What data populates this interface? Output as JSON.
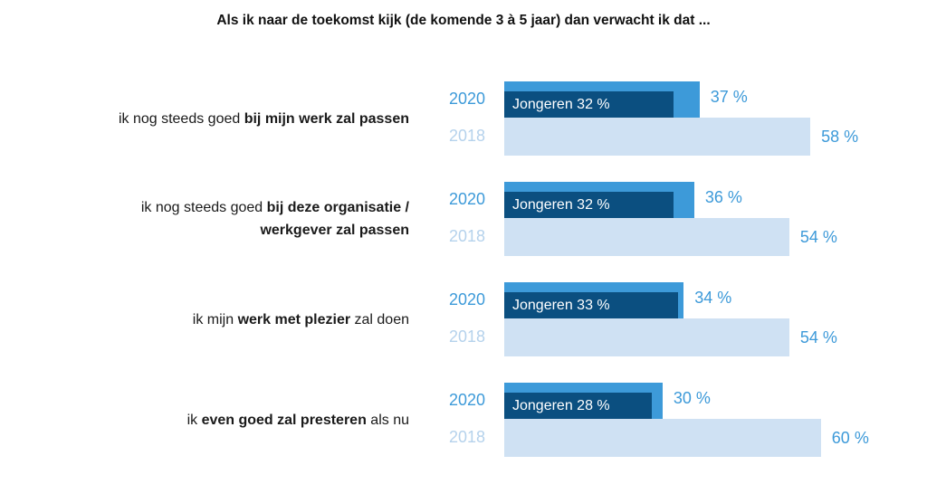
{
  "title": "Als ik naar de toekomst kijk (de komende 3 à 5 jaar) dan verwacht ik dat ...",
  "colors": {
    "bar2020": "#3d9ad9",
    "youth": "#0b4f80",
    "bar2018": "#cfe1f3",
    "year2020": "#3d9ad9",
    "year2018": "#b5d2ec",
    "pct2020": "#3d9ad9",
    "pct2018": "#3d9ad9"
  },
  "rows": [
    {
      "label_lines": [
        [
          {
            "text": "ik nog steeds goed ",
            "bold": false
          },
          {
            "text": "bij mijn werk zal passen",
            "bold": true
          }
        ]
      ]
    },
    {
      "label_lines": [
        [
          {
            "text": "ik nog steeds goed ",
            "bold": false
          },
          {
            "text": "bij deze organisatie /",
            "bold": true
          }
        ],
        [
          {
            "text": "werkgever zal passen",
            "bold": true
          }
        ]
      ]
    },
    {
      "label_lines": [
        [
          {
            "text": "ik mijn ",
            "bold": false
          },
          {
            "text": "werk met plezier",
            "bold": true
          },
          {
            "text": " zal doen",
            "bold": false
          }
        ]
      ]
    },
    {
      "label_lines": [
        [
          {
            "text": "ik ",
            "bold": false
          },
          {
            "text": "even goed zal presteren",
            "bold": true
          },
          {
            "text": " als nu",
            "bold": false
          }
        ]
      ]
    }
  ],
  "chart_data": {
    "type": "bar",
    "orientation": "horizontal",
    "title": "Als ik naar de toekomst kijk (de komende 3 à 5 jaar) dan verwacht ik dat ...",
    "categories": [
      "ik nog steeds goed bij mijn werk zal passen",
      "ik nog steeds goed bij deze organisatie / werkgever zal passen",
      "ik mijn werk met plezier zal doen",
      "ik even goed zal presteren als nu"
    ],
    "unit": "%",
    "series": [
      {
        "name": "2020",
        "values": [
          37,
          36,
          34,
          30
        ],
        "labels": [
          "37 %",
          "36 %",
          "34 %",
          "30 %"
        ]
      },
      {
        "name": "Jongeren",
        "values": [
          32,
          32,
          33,
          28
        ],
        "labels": [
          "Jongeren 32 %",
          "Jongeren 32 %",
          "Jongeren 33 %",
          "Jongeren 28 %"
        ]
      },
      {
        "name": "2018",
        "values": [
          58,
          54,
          54,
          60
        ],
        "labels": [
          "58 %",
          "54 %",
          "54 %",
          "60 %"
        ]
      }
    ]
  }
}
